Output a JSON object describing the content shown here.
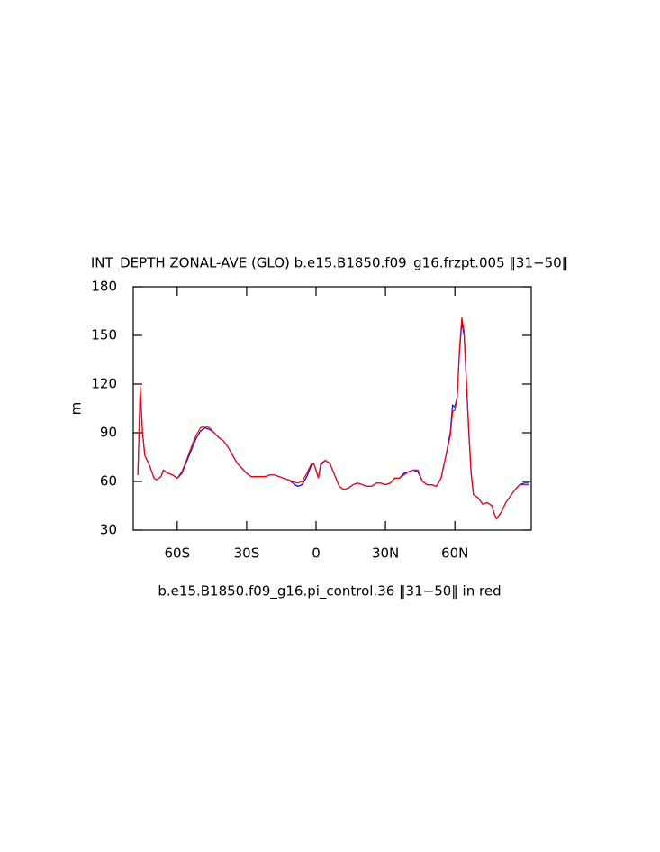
{
  "chart_data": {
    "type": "line",
    "title": "INT_DEPTH ZONAL-AVE (GLO) b.e15.B1850.f09_g16.frzpt.005 ‖31−50‖",
    "subtitle": "b.e15.B1850.f09_g16.pi_control.36 ‖31−50‖ in red",
    "y_label": "m",
    "x": [
      -77,
      -76,
      -75,
      -74,
      -72,
      -70,
      -69,
      -67,
      -66,
      -64,
      -62,
      -60,
      -58,
      -56,
      -54,
      -52,
      -50,
      -48,
      -46,
      -44,
      -42,
      -40,
      -38,
      -36,
      -34,
      -32,
      -30,
      -28,
      -26,
      -24,
      -22,
      -20,
      -18,
      -16,
      -14,
      -12,
      -10,
      -8,
      -6,
      -4,
      -2,
      -1,
      0,
      1,
      2,
      4,
      6,
      8,
      10,
      12,
      14,
      16,
      18,
      20,
      22,
      24,
      26,
      28,
      30,
      32,
      34,
      36,
      38,
      40,
      42,
      44,
      46,
      48,
      50,
      52,
      54,
      56,
      58,
      59,
      60,
      61,
      62,
      63,
      64,
      65,
      66,
      67,
      68,
      70,
      72,
      74,
      76,
      77,
      78,
      80,
      82,
      84,
      86,
      88,
      90,
      92
    ],
    "series": [
      {
        "color": "#0000ff",
        "values": [
          64,
          115,
          90,
          76,
          70,
          62,
          61,
          63,
          67,
          65,
          64,
          62,
          65,
          72,
          79,
          86,
          91,
          93,
          92,
          90,
          87,
          85,
          81,
          76,
          71,
          68,
          65,
          63,
          63,
          63,
          63,
          64,
          64,
          63,
          62,
          61,
          59,
          57,
          58,
          63,
          70,
          71,
          67,
          62,
          70,
          73,
          71,
          64,
          57,
          55,
          56,
          58,
          59,
          58,
          57,
          57,
          59,
          59,
          58,
          59,
          62,
          62,
          65,
          66,
          67,
          66,
          60,
          58,
          58,
          57,
          62,
          75,
          90,
          107,
          106,
          112,
          140,
          158,
          150,
          120,
          90,
          65,
          52,
          50,
          46,
          47,
          45,
          40,
          37,
          41,
          47,
          51,
          55,
          58,
          59,
          59
        ]
      },
      {
        "color": "#ff0000",
        "values": [
          64,
          119,
          91,
          76,
          70,
          62,
          61,
          63,
          67,
          65,
          64,
          62,
          66,
          73,
          81,
          88,
          93,
          94,
          93,
          90,
          87,
          85,
          81,
          76,
          71,
          68,
          65,
          63,
          63,
          63,
          63,
          64,
          64,
          63,
          62,
          61,
          60,
          59,
          60,
          65,
          71,
          71,
          67,
          62,
          71,
          73,
          71,
          64,
          57,
          55,
          56,
          58,
          59,
          58,
          57,
          57,
          59,
          59,
          58,
          59,
          62,
          62,
          64,
          66,
          67,
          67,
          60,
          58,
          58,
          57,
          62,
          75,
          88,
          103,
          104,
          112,
          142,
          161,
          152,
          122,
          92,
          66,
          52,
          50,
          46,
          47,
          45,
          40,
          37,
          41,
          47,
          51,
          55,
          58,
          58,
          58
        ]
      }
    ],
    "xlim": [
      -79,
      93
    ],
    "xticks": [
      {
        "value": -60,
        "label": "60S"
      },
      {
        "value": -30,
        "label": "30S"
      },
      0,
      {
        "value": 30,
        "label": "30N"
      },
      {
        "value": 60,
        "label": "60N"
      }
    ],
    "ylim": [
      30,
      180
    ],
    "yticks": [
      30,
      60,
      90,
      120,
      150,
      180
    ]
  }
}
